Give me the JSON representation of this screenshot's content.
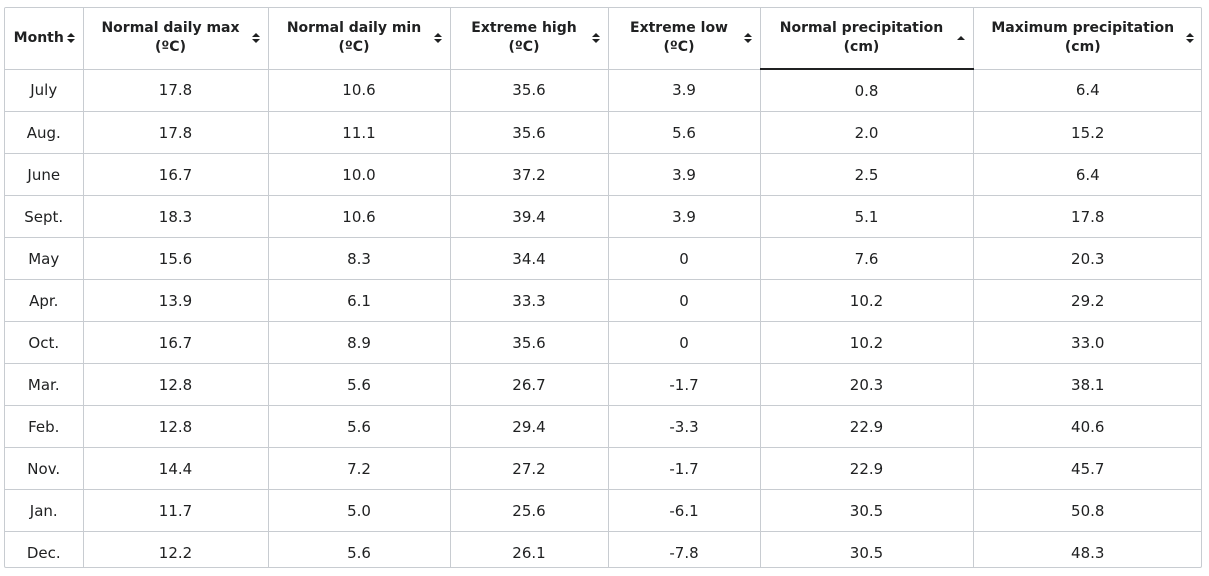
{
  "table": {
    "sorted_column": 5,
    "columns": [
      {
        "line1": "Month",
        "line2": "",
        "sort": "both"
      },
      {
        "line1": "Normal daily max",
        "line2": "(ºC)",
        "sort": "both"
      },
      {
        "line1": "Normal daily min",
        "line2": "(ºC)",
        "sort": "both"
      },
      {
        "line1": "Extreme high",
        "line2": "(ºC)",
        "sort": "both"
      },
      {
        "line1": "Extreme low",
        "line2": "(ºC)",
        "sort": "both"
      },
      {
        "line1": "Normal precipitation",
        "line2": "(cm)",
        "sort": "ascending"
      },
      {
        "line1": "Maximum precipitation",
        "line2": "(cm)",
        "sort": "both"
      }
    ],
    "rows": [
      [
        "July",
        "17.8",
        "10.6",
        "35.6",
        "3.9",
        "0.8",
        "6.4"
      ],
      [
        "Aug.",
        "17.8",
        "11.1",
        "35.6",
        "5.6",
        "2.0",
        "15.2"
      ],
      [
        "June",
        "16.7",
        "10.0",
        "37.2",
        "3.9",
        "2.5",
        "6.4"
      ],
      [
        "Sept.",
        "18.3",
        "10.6",
        "39.4",
        "3.9",
        "5.1",
        "17.8"
      ],
      [
        "May",
        "15.6",
        "8.3",
        "34.4",
        "0",
        "7.6",
        "20.3"
      ],
      [
        "Apr.",
        "13.9",
        "6.1",
        "33.3",
        "0",
        "10.2",
        "29.2"
      ],
      [
        "Oct.",
        "16.7",
        "8.9",
        "35.6",
        "0",
        "10.2",
        "33.0"
      ],
      [
        "Mar.",
        "12.8",
        "5.6",
        "26.7",
        "-1.7",
        "20.3",
        "38.1"
      ],
      [
        "Feb.",
        "12.8",
        "5.6",
        "29.4",
        "-3.3",
        "22.9",
        "40.6"
      ],
      [
        "Nov.",
        "14.4",
        "7.2",
        "27.2",
        "-1.7",
        "22.9",
        "45.7"
      ],
      [
        "Jan.",
        "11.7",
        "5.0",
        "25.6",
        "-6.1",
        "30.5",
        "50.8"
      ],
      [
        "Dec.",
        "12.2",
        "5.6",
        "26.1",
        "-7.8",
        "30.5",
        "48.3"
      ]
    ]
  },
  "colors": {
    "text": "#202122",
    "border": "#c8ccd1"
  }
}
